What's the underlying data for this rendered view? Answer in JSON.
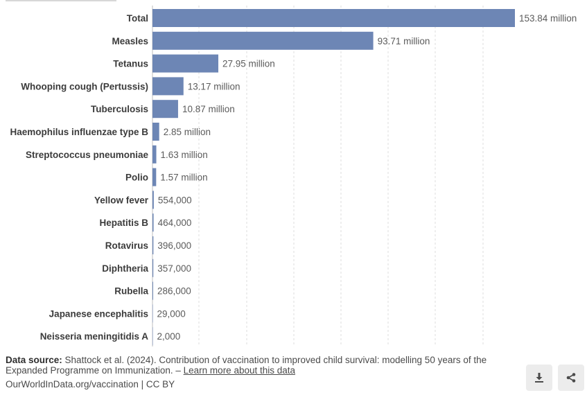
{
  "chart_data": {
    "type": "bar",
    "orientation": "horizontal",
    "categories": [
      "Total",
      "Measles",
      "Tetanus",
      "Whooping cough (Pertussis)",
      "Tuberculosis",
      "Haemophilus influenzae type B",
      "Streptococcus pneumoniae",
      "Polio",
      "Yellow fever",
      "Hepatitis B",
      "Rotavirus",
      "Diphtheria",
      "Rubella",
      "Japanese encephalitis",
      "Neisseria meningitidis A"
    ],
    "values": [
      153840000,
      93710000,
      27950000,
      13170000,
      10870000,
      2850000,
      1630000,
      1570000,
      554000,
      464000,
      396000,
      357000,
      286000,
      29000,
      2000
    ],
    "value_labels": [
      "153.84 million",
      "93.71 million",
      "27.95 million",
      "13.17 million",
      "10.87 million",
      "2.85 million",
      "1.63 million",
      "1.57 million",
      "554,000",
      "464,000",
      "396,000",
      "357,000",
      "286,000",
      "29,000",
      "2,000"
    ],
    "xlim": [
      0,
      153840000
    ],
    "grid": true,
    "bar_color": "#6d86b5"
  },
  "footer": {
    "source_label": "Data source:",
    "source_text": "Shattock et al. (2024). Contribution of vaccination to improved child survival: modelling 50 years of the Expanded Programme on Immunization. –",
    "learn_more": "Learn more about this data",
    "attribution": "OurWorldInData.org/vaccination | CC BY"
  },
  "icons": {
    "download": "download-icon",
    "share": "share-icon"
  }
}
